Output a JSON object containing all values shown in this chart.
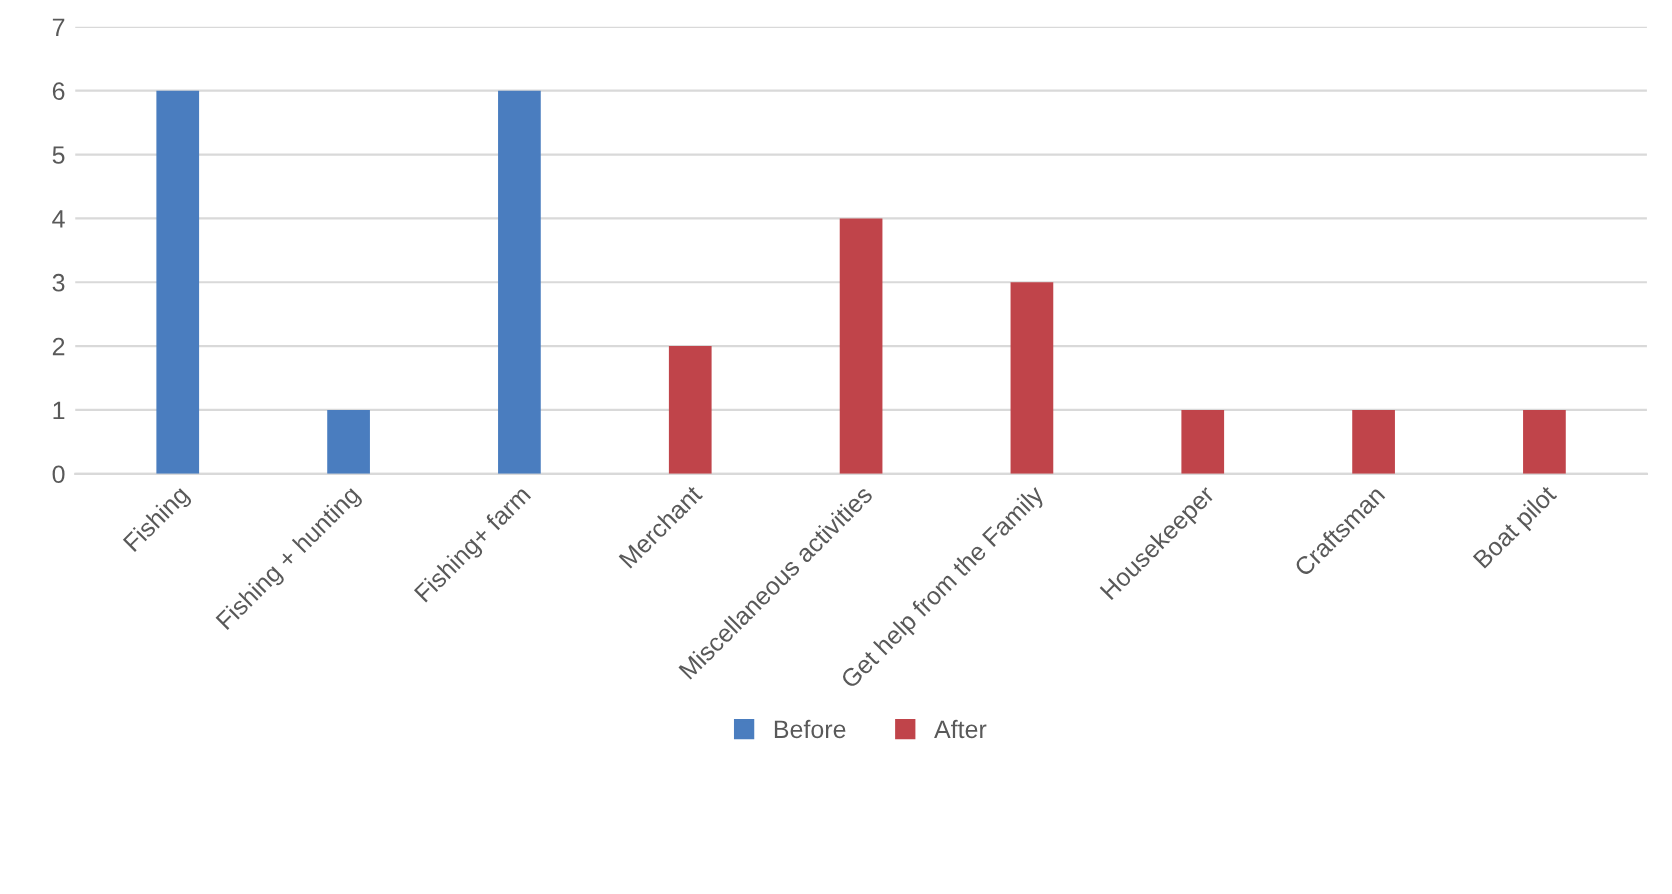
{
  "chart_data": {
    "type": "bar",
    "categories": [
      "Fishing",
      "Fishing + hunting",
      "Fishing+ farm",
      "Merchant",
      "Miscellaneous activities",
      "Get help from the Family",
      "Housekeeper",
      "Craftsman",
      "Boat pilot"
    ],
    "series": [
      {
        "name": "Before",
        "color": "#4a7dbf",
        "values": [
          6,
          1,
          6,
          null,
          null,
          null,
          null,
          null,
          null
        ]
      },
      {
        "name": "After",
        "color": "#c0444a",
        "values": [
          null,
          null,
          null,
          2,
          4,
          3,
          1,
          1,
          1
        ]
      }
    ],
    "ylim": [
      0,
      7
    ],
    "yticks": [
      0,
      1,
      2,
      3,
      4,
      5,
      6,
      7
    ],
    "grid": "y",
    "legend": "bottom"
  }
}
